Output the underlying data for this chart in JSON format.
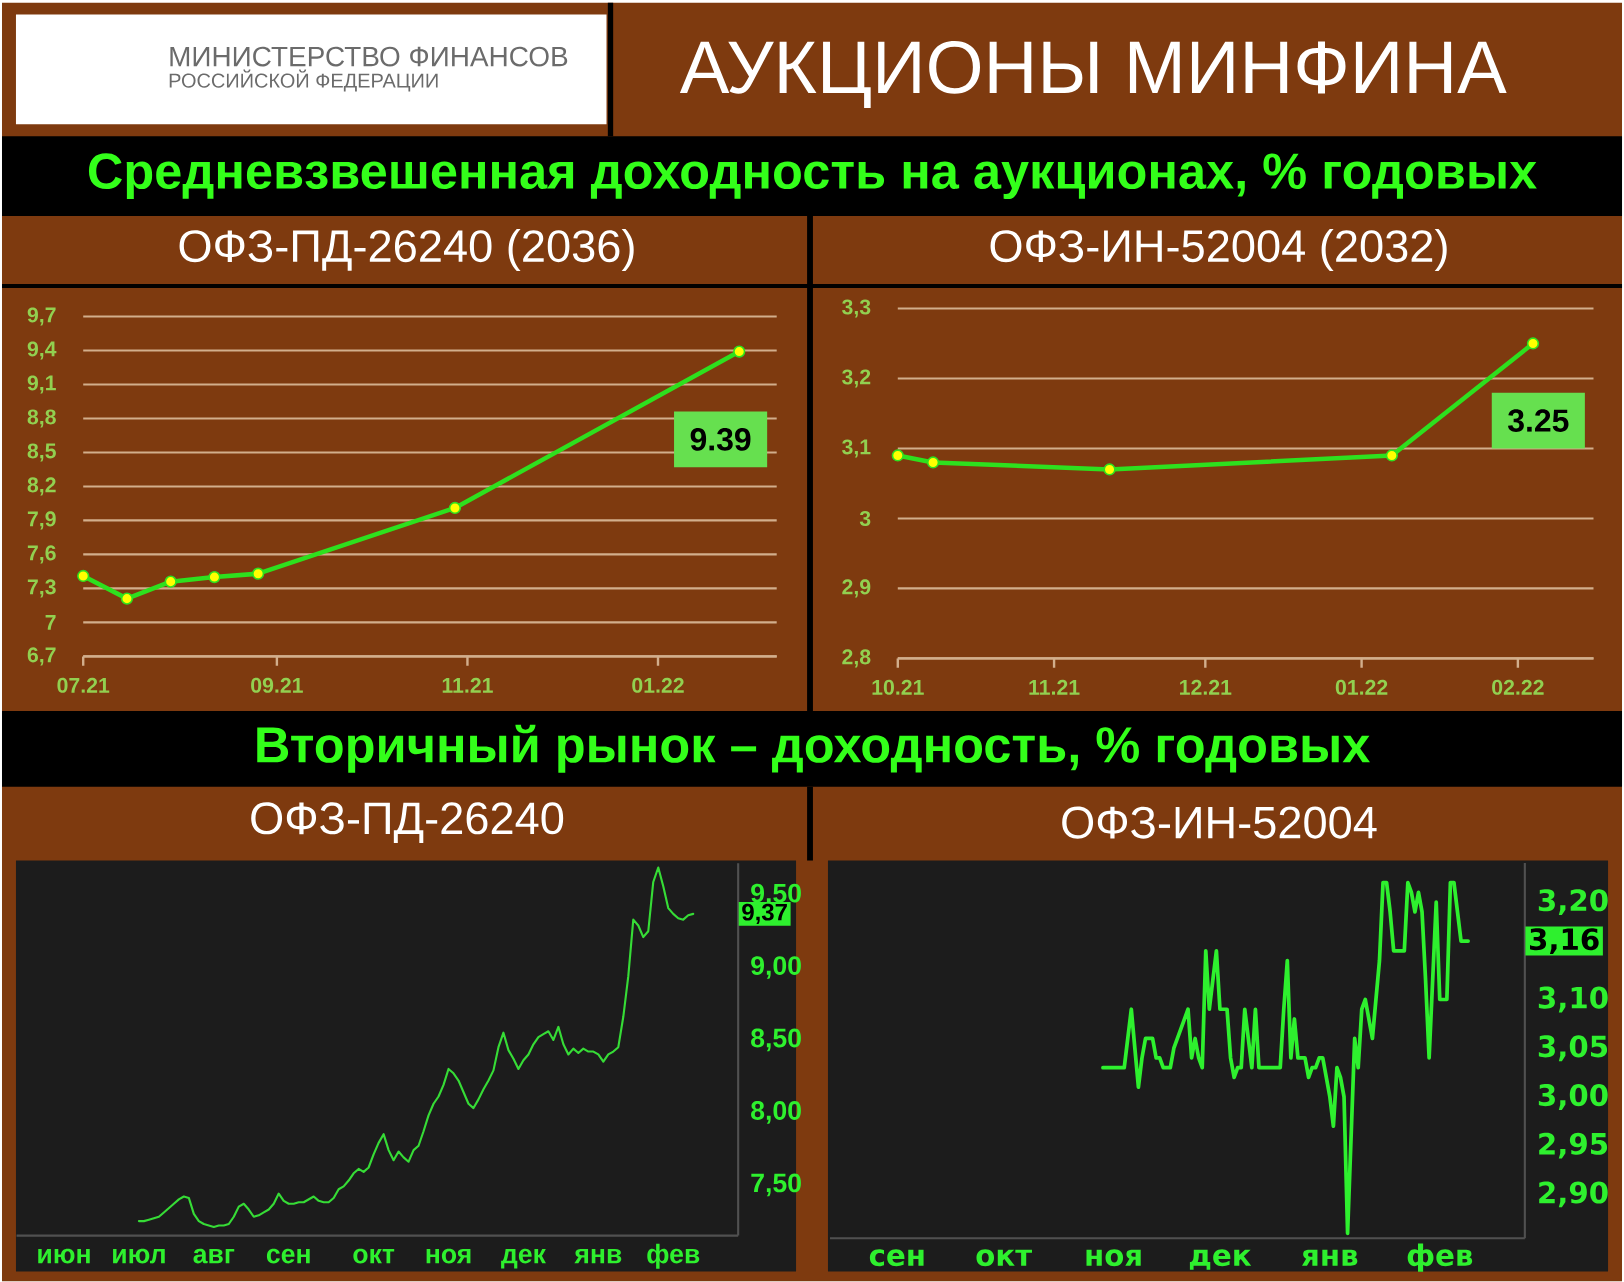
{
  "chart_data": [
    {
      "type": "other",
      "title": "АУКЦИОНЫ МИНФИНА",
      "annotations": [
        "МИНИСТЕРСТВО ФИНАНСОВ",
        "РОССИЙСКОЙ ФЕДЕРАЦИИ"
      ]
    },
    {
      "type": "other",
      "title": "Средневзвешенная доходность на аукционах, % годовых"
    },
    {
      "type": "line",
      "title": "ОФЗ-ПД-26240 (2036)",
      "x": [
        "2021-07-07",
        "2021-07-21",
        "2021-08-04",
        "2021-08-18",
        "2021-09-01",
        "2021-11-03",
        "2022-02-02"
      ],
      "values": [
        7.41,
        7.21,
        7.36,
        7.4,
        7.43,
        8.01,
        9.39
      ],
      "color": "#2ee01e",
      "marker": "circle",
      "value_labels": [
        null,
        null,
        null,
        null,
        null,
        null,
        "9.39"
      ],
      "xlim": [
        "2021-07-07",
        "2022-02-14"
      ],
      "xticks": [
        {
          "value": "2021-07-07",
          "label": "07.21"
        },
        {
          "value": "2021-09-07",
          "label": "09.21"
        },
        {
          "value": "2021-11-07",
          "label": "11.21"
        },
        {
          "value": "2022-01-07",
          "label": "01.22"
        }
      ],
      "ylim": [
        6.7,
        9.7
      ],
      "yticks": [
        {
          "value": 6.7,
          "label": "6,7"
        },
        7,
        {
          "value": 7.3,
          "label": "7,3"
        },
        {
          "value": 7.6,
          "label": "7,6"
        },
        {
          "value": 7.9,
          "label": "7,9"
        },
        {
          "value": 8.2,
          "label": "8,2"
        },
        {
          "value": 8.5,
          "label": "8,5"
        },
        {
          "value": 8.8,
          "label": "8,8"
        },
        {
          "value": 9.1,
          "label": "9,1"
        },
        {
          "value": 9.4,
          "label": "9,4"
        },
        {
          "value": 9.7,
          "label": "9,7"
        }
      ],
      "grid": "y"
    },
    {
      "type": "line",
      "title": "ОФЗ-ИН-52004 (2032)",
      "x": [
        "2021-10-13",
        "2021-10-20",
        "2021-11-24",
        "2022-01-19",
        "2022-02-16"
      ],
      "values": [
        3.09,
        3.08,
        3.07,
        3.09,
        3.25
      ],
      "color": "#2ee01e",
      "marker": "circle",
      "value_labels": [
        null,
        null,
        null,
        null,
        "3.25"
      ],
      "xlim": [
        "2021-10-13",
        "2022-02-28"
      ],
      "xticks": [
        {
          "value": "2021-10-13",
          "label": "10.21"
        },
        {
          "value": "2021-11-13",
          "label": "11.21"
        },
        {
          "value": "2021-12-13",
          "label": "12.21"
        },
        {
          "value": "2022-01-13",
          "label": "01.22"
        },
        {
          "value": "2022-02-13",
          "label": "02.22"
        }
      ],
      "ylim": [
        2.8,
        3.3
      ],
      "yticks": [
        {
          "value": 2.8,
          "label": "2,8"
        },
        {
          "value": 2.9,
          "label": "2,9"
        },
        3,
        {
          "value": 3.1,
          "label": "3,1"
        },
        {
          "value": 3.2,
          "label": "3,2"
        },
        {
          "value": 3.3,
          "label": "3,3"
        }
      ],
      "grid": "y"
    },
    {
      "type": "other",
      "title": "Вторичный рынок – доходность, % годовых"
    },
    {
      "type": "line",
      "title": "ОФЗ-ПД-26240",
      "categories": [
        "июн",
        null,
        null,
        null,
        null,
        null,
        null,
        null,
        null,
        null,
        null,
        null,
        null,
        null,
        null,
        "июл",
        null,
        null,
        null,
        null,
        null,
        null,
        null,
        null,
        null,
        null,
        null,
        null,
        null,
        null,
        "авг",
        null,
        null,
        null,
        null,
        null,
        null,
        null,
        null,
        null,
        null,
        null,
        null,
        null,
        null,
        "сен",
        null,
        null,
        null,
        null,
        null,
        null,
        null,
        null,
        null,
        null,
        null,
        null,
        null,
        null,
        null,
        null,
        "окт",
        null,
        null,
        null,
        null,
        null,
        null,
        null,
        null,
        null,
        null,
        null,
        null,
        null,
        null,
        "ноя",
        null,
        null,
        null,
        null,
        null,
        null,
        null,
        null,
        null,
        null,
        null,
        null,
        null,
        null,
        "дек",
        null,
        null,
        null,
        null,
        null,
        null,
        null,
        null,
        null,
        null,
        null,
        null,
        null,
        null,
        "янв",
        null,
        null,
        null,
        null,
        null,
        null,
        null,
        null,
        null,
        null,
        null,
        null,
        null,
        null,
        "фев",
        null,
        null,
        null,
        null
      ],
      "values": [
        null,
        null,
        null,
        null,
        null,
        null,
        null,
        null,
        null,
        null,
        null,
        null,
        null,
        null,
        null,
        7.25,
        7.25,
        7.26,
        7.27,
        7.28,
        7.31,
        7.34,
        7.37,
        7.4,
        7.42,
        7.41,
        7.3,
        7.25,
        7.23,
        7.22,
        7.21,
        7.22,
        7.22,
        7.23,
        7.28,
        7.35,
        7.37,
        7.33,
        7.28,
        7.29,
        7.31,
        7.33,
        7.37,
        7.44,
        7.39,
        7.37,
        7.37,
        7.38,
        7.38,
        7.4,
        7.42,
        7.39,
        7.38,
        7.38,
        7.41,
        7.47,
        7.49,
        7.53,
        7.58,
        7.61,
        7.59,
        7.62,
        7.71,
        7.79,
        7.85,
        7.74,
        7.67,
        7.73,
        7.69,
        7.66,
        7.74,
        7.77,
        7.87,
        7.98,
        8.06,
        8.11,
        8.19,
        8.3,
        8.27,
        8.22,
        8.14,
        8.06,
        8.03,
        8.09,
        8.16,
        8.22,
        8.29,
        8.45,
        8.55,
        8.43,
        8.37,
        8.3,
        8.36,
        8.4,
        8.47,
        8.52,
        8.54,
        8.56,
        8.5,
        8.59,
        8.47,
        8.4,
        8.44,
        8.41,
        8.44,
        8.42,
        8.42,
        8.4,
        8.35,
        8.4,
        8.42,
        8.45,
        8.66,
        8.94,
        9.33,
        9.29,
        9.21,
        9.25,
        9.59,
        9.69,
        9.56,
        9.41,
        9.37,
        9.34,
        9.33,
        9.36,
        9.37
      ],
      "color": "#36dc36",
      "annotations": [
        "9,37"
      ],
      "ylim": [
        7.15,
        9.72
      ],
      "yticks": [
        {
          "value": 7.5,
          "label": "7,50"
        },
        {
          "value": 8,
          "label": "8,00"
        },
        {
          "value": 8.5,
          "label": "8,50"
        },
        {
          "value": 9,
          "label": "9,00"
        },
        {
          "value": 9.5,
          "label": "9,50"
        }
      ]
    },
    {
      "type": "line",
      "title": "ОФЗ-ИН-52004",
      "categories": [
        "сен",
        null,
        null,
        null,
        null,
        null,
        null,
        null,
        null,
        null,
        null,
        null,
        null,
        null,
        null,
        null,
        null,
        null,
        null,
        null,
        null,
        null,
        null,
        null,
        null,
        null,
        null,
        null,
        null,
        null,
        "окт",
        null,
        null,
        null,
        null,
        null,
        null,
        null,
        null,
        null,
        null,
        null,
        null,
        null,
        null,
        null,
        null,
        null,
        null,
        null,
        null,
        null,
        null,
        null,
        null,
        null,
        null,
        null,
        null,
        null,
        null,
        "ноя",
        null,
        null,
        null,
        null,
        null,
        null,
        null,
        null,
        null,
        null,
        null,
        null,
        null,
        null,
        null,
        null,
        null,
        null,
        null,
        null,
        null,
        null,
        null,
        null,
        null,
        null,
        null,
        null,
        null,
        "дек",
        null,
        null,
        null,
        null,
        null,
        null,
        null,
        null,
        null,
        null,
        null,
        null,
        null,
        null,
        null,
        null,
        null,
        null,
        null,
        null,
        null,
        null,
        null,
        null,
        null,
        null,
        null,
        null,
        null,
        null,
        "янв",
        null,
        null,
        null,
        null,
        null,
        null,
        null,
        null,
        null,
        null,
        null,
        null,
        null,
        null,
        null,
        null,
        null,
        null,
        null,
        null,
        null,
        null,
        null,
        null,
        null,
        null,
        null,
        null,
        null,
        null,
        "фев",
        null,
        null,
        null,
        null,
        null,
        null,
        null,
        null
      ],
      "values": [
        null,
        null,
        null,
        null,
        null,
        null,
        null,
        null,
        null,
        null,
        null,
        null,
        null,
        null,
        null,
        null,
        null,
        null,
        null,
        null,
        null,
        null,
        null,
        null,
        null,
        null,
        null,
        null,
        null,
        null,
        null,
        null,
        null,
        null,
        null,
        null,
        null,
        null,
        null,
        null,
        null,
        null,
        null,
        null,
        null,
        null,
        null,
        null,
        null,
        null,
        null,
        null,
        null,
        null,
        null,
        null,
        null,
        null,
        3.03,
        3.03,
        3.03,
        3.03,
        3.03,
        3.03,
        3.03,
        3.06,
        3.09,
        3.05,
        3.01,
        3.04,
        3.06,
        3.06,
        3.06,
        3.04,
        3.04,
        3.03,
        3.03,
        3.03,
        3.05,
        3.06,
        3.07,
        3.08,
        3.09,
        3.04,
        3.06,
        3.04,
        3.03,
        3.15,
        3.09,
        3.12,
        3.15,
        3.09,
        3.09,
        3.09,
        3.04,
        3.02,
        3.03,
        3.03,
        3.09,
        3.06,
        3.03,
        3.09,
        3.03,
        3.03,
        3.03,
        3.03,
        3.03,
        3.03,
        3.03,
        3.09,
        3.14,
        3.04,
        3.08,
        3.04,
        3.04,
        3.04,
        3.02,
        3.03,
        3.03,
        3.04,
        3.04,
        3.02,
        3.0,
        2.97,
        3.03,
        3.02,
        3.0,
        2.86,
        2.96,
        3.06,
        3.03,
        3.09,
        3.1,
        3.08,
        3.06,
        3.1,
        3.14,
        3.22,
        3.22,
        3.19,
        3.15,
        3.15,
        3.15,
        3.15,
        3.22,
        3.21,
        3.19,
        3.21,
        3.19,
        3.12,
        3.04,
        3.12,
        3.2,
        3.1,
        3.1,
        3.1,
        3.22,
        3.22,
        3.19,
        3.16,
        3.16,
        3.16
      ],
      "color": "#2ef02e",
      "annotations": [
        "3,16"
      ],
      "ylim": [
        2.855,
        3.24
      ],
      "yticks": [
        {
          "value": 2.9,
          "label": "2,90"
        },
        {
          "value": 2.95,
          "label": "2,95"
        },
        {
          "value": 3,
          "label": "3,00"
        },
        {
          "value": 3.05,
          "label": "3,05"
        },
        {
          "value": 3.1,
          "label": "3,10"
        },
        {
          "value": 3.2,
          "label": "3,20"
        }
      ]
    }
  ]
}
